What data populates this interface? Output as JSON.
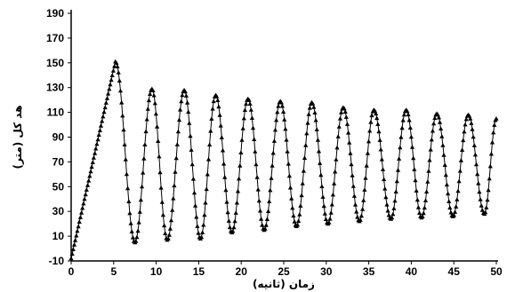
{
  "chart_data": {
    "type": "line",
    "title": "",
    "xlabel": "زمان (ثانیه)",
    "ylabel": "هد کل (متر)",
    "xlim": [
      0,
      50
    ],
    "ylim": [
      -10,
      190
    ],
    "x_ticks": [
      0,
      5,
      10,
      15,
      20,
      25,
      30,
      35,
      40,
      45,
      50
    ],
    "y_ticks": [
      -10,
      10,
      30,
      50,
      70,
      90,
      110,
      130,
      150,
      170,
      190
    ],
    "grid": false,
    "marker": "triangle",
    "series": [
      {
        "x": [
          0,
          5.2,
          7.5,
          9.5,
          11.3,
          13.3,
          15.2,
          17.0,
          18.9,
          20.8,
          22.7,
          24.6,
          26.5,
          28.3,
          30.2,
          32.0,
          33.9,
          35.6,
          37.6,
          39.4,
          41.2,
          43.0,
          44.9,
          46.7,
          48.6,
          50.0
        ],
        "y": [
          -8,
          151,
          5,
          129,
          7,
          128,
          8,
          124,
          13,
          121,
          15,
          119,
          18,
          118,
          20,
          114,
          22,
          112,
          24,
          112,
          25,
          109,
          26,
          108,
          28,
          105
        ]
      }
    ]
  }
}
